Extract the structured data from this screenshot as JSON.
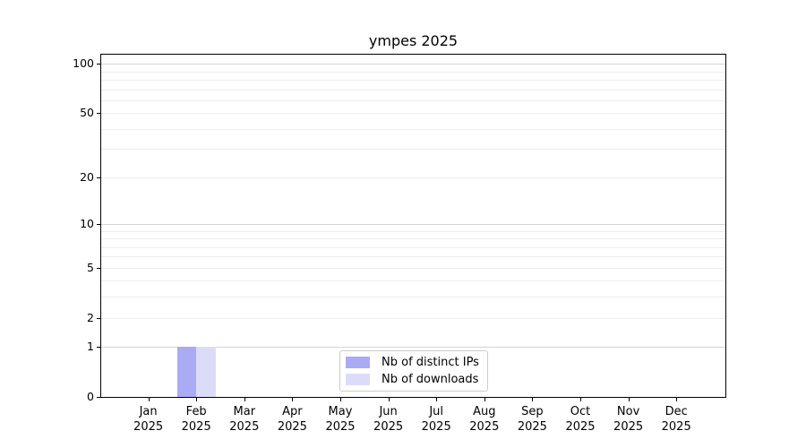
{
  "title": "ympes 2025",
  "chart_data": {
    "type": "bar",
    "title": "ympes 2025",
    "categories": [
      "Jan 2025",
      "Feb 2025",
      "Mar 2025",
      "Apr 2025",
      "May 2025",
      "Jun 2025",
      "Jul 2025",
      "Aug 2025",
      "Sep 2025",
      "Oct 2025",
      "Nov 2025",
      "Dec 2025"
    ],
    "series": [
      {
        "name": "Nb of distinct IPs",
        "color": "#aaaaf5",
        "values": [
          0,
          1,
          0,
          0,
          0,
          0,
          0,
          0,
          0,
          0,
          0,
          0
        ]
      },
      {
        "name": "Nb of downloads",
        "color": "#dcdcf9",
        "values": [
          0,
          1,
          0,
          0,
          0,
          0,
          0,
          0,
          0,
          0,
          0,
          0
        ]
      }
    ],
    "xlabel": "",
    "ylabel": "",
    "yscale": "log1p",
    "yticks": [
      0,
      1,
      2,
      5,
      10,
      20,
      50,
      100
    ],
    "ylim": [
      0,
      113
    ],
    "grid": "horizontal",
    "legend_position": "lower-center"
  },
  "legend": {
    "items": [
      {
        "label": "Nb of distinct IPs",
        "color": "#aaaaf5"
      },
      {
        "label": "Nb of downloads",
        "color": "#dcdcf9"
      }
    ]
  },
  "colors": {
    "bar_distinct_ips": "#aaaaf5",
    "bar_downloads": "#dcdcf9",
    "grid_minor": "#ededed",
    "grid_major": "#d4d4d4",
    "spine": "#000000",
    "text": "#000000",
    "legend_border": "#cccccc"
  }
}
